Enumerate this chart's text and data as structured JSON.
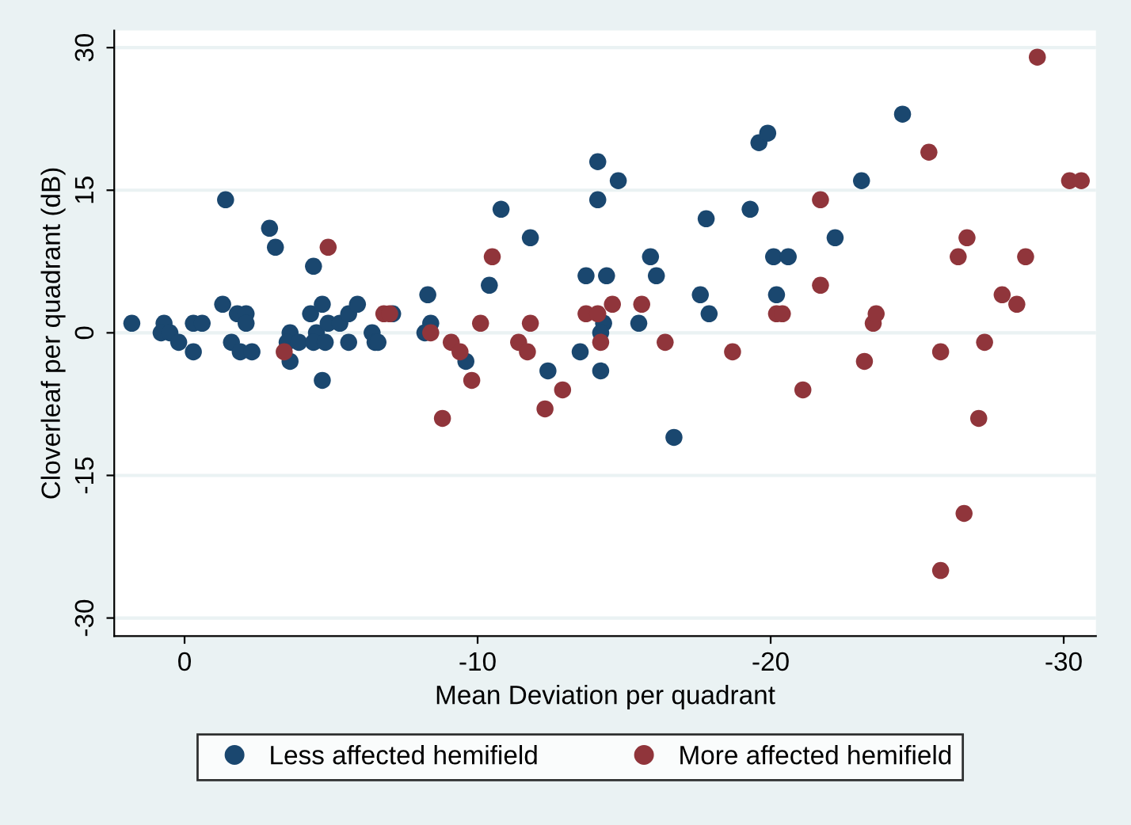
{
  "chart_data": {
    "type": "scatter",
    "xlabel": "Mean Deviation per quadrant",
    "ylabel": "Cloverleaf per quadrant (dB)",
    "xlim": [
      2.4,
      -31.1
    ],
    "ylim": [
      -31.9,
      31.8
    ],
    "xticks": [
      0,
      -10,
      -20,
      -30
    ],
    "yticks": [
      -30,
      -15,
      0,
      15,
      30
    ],
    "grid": "y",
    "legend": "bottom",
    "marker": "circle",
    "series": [
      {
        "name": "Less affected hemifield",
        "color": "#1a476f",
        "x": [
          1.8,
          0.7,
          0.8,
          0.5,
          0.2,
          -0.3,
          -0.6,
          -0.3,
          -1.4,
          -1.3,
          -1.8,
          -2.1,
          -2.1,
          -1.6,
          -1.9,
          -2.3,
          -2.9,
          -3.1,
          -4.4,
          -3.6,
          -3.5,
          -3.6,
          -3.9,
          -4.3,
          -4.7,
          -4.5,
          -4.4,
          -4.8,
          -4.9,
          -4.7,
          -5.3,
          -5.6,
          -5.9,
          -5.6,
          -6.4,
          -6.5,
          -6.6,
          -7.1,
          -8.3,
          -8.4,
          -8.2,
          -9.6,
          -10.4,
          -10.8,
          -11.8,
          -12.4,
          -13.5,
          -13.7,
          -14.4,
          -14.1,
          -14.8,
          -14.1,
          -14.3,
          -14.2,
          -14.2,
          -15.5,
          -15.9,
          -16.1,
          -16.7,
          -17.8,
          -17.6,
          -17.9,
          -19.3,
          -19.6,
          -19.9,
          -20.1,
          -20.6,
          -20.2,
          -22.2,
          -23.1,
          -24.5
        ],
        "values": [
          1,
          1,
          0,
          0,
          -1,
          1,
          1,
          -2,
          14,
          3,
          2,
          2,
          1,
          -1,
          -2,
          -2,
          11,
          9,
          7,
          0,
          -1,
          -3,
          -1,
          2,
          3,
          0,
          -1,
          -1,
          1,
          -5,
          1,
          2,
          3,
          -1,
          0,
          -1,
          -1,
          2,
          4,
          1,
          0,
          -3,
          5,
          13,
          10,
          -4,
          -2,
          6,
          6,
          18,
          16,
          14,
          1,
          0,
          -4,
          1,
          8,
          6,
          -11,
          12,
          4,
          2,
          13,
          20,
          21,
          8,
          8,
          4,
          10,
          16,
          23
        ]
      },
      {
        "name": "More affected hemifield",
        "color": "#90353b",
        "x": [
          -3.4,
          -4.9,
          -6.8,
          -7.0,
          -8.4,
          -9.1,
          -8.8,
          -9.4,
          -9.8,
          -10.1,
          -10.5,
          -11.4,
          -11.7,
          -11.8,
          -12.3,
          -12.9,
          -13.7,
          -14.1,
          -14.6,
          -14.2,
          -15.6,
          -16.4,
          -18.7,
          -20.2,
          -20.4,
          -21.1,
          -21.7,
          -21.7,
          -23.2,
          -23.5,
          -23.6,
          -25.4,
          -25.8,
          -25.8,
          -26.4,
          -26.7,
          -26.6,
          -27.1,
          -27.3,
          -27.9,
          -28.4,
          -28.7,
          -29.1,
          -30.2,
          -30.6
        ],
        "values": [
          -2,
          9,
          2,
          2,
          0,
          -1,
          -9,
          -2,
          -5,
          1,
          8,
          -1,
          -2,
          1,
          -8,
          -6,
          2,
          2,
          3,
          -1,
          3,
          -1,
          -2,
          2,
          2,
          -6,
          14,
          5,
          -3,
          1,
          2,
          19,
          -2,
          -25,
          8,
          10,
          -19,
          -9,
          -1,
          4,
          3,
          8,
          29,
          16,
          16
        ]
      }
    ]
  }
}
